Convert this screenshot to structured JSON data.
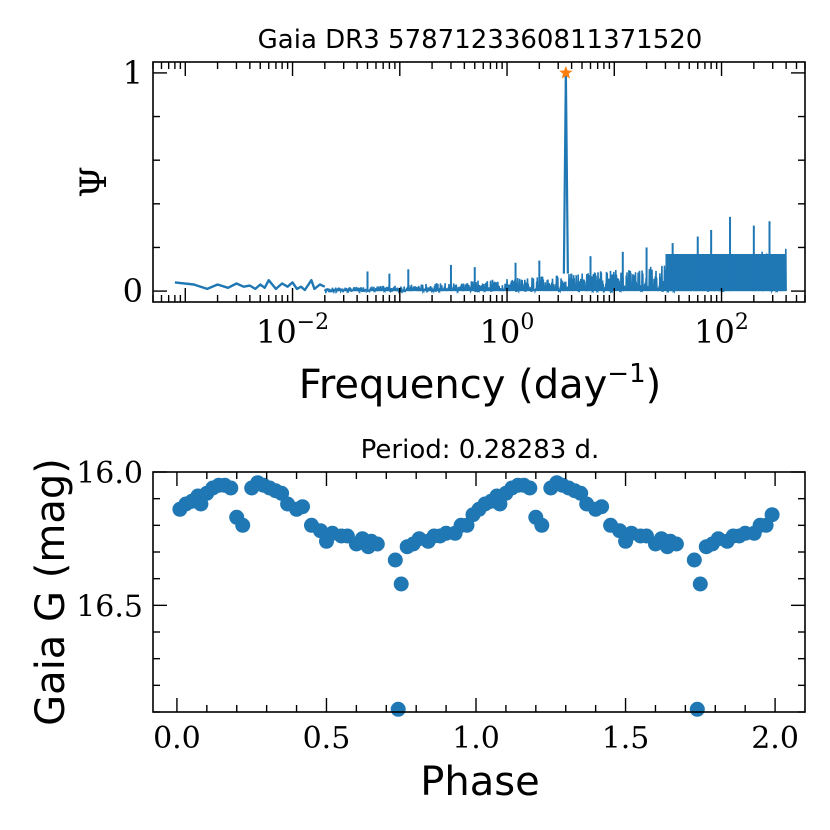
{
  "chart_data": [
    {
      "type": "line",
      "title": "Gaia DR3 5787123360811371520",
      "xlabel": "Frequency (day",
      "xlabel_exp": "−1",
      "xlabel_close": ")",
      "ylabel": "Ψ",
      "xscale": "log",
      "xlim": [
        0.0005,
        600
      ],
      "ylim": [
        -0.05,
        1.05
      ],
      "x_ticks": [
        {
          "value": 0.01,
          "base": "10",
          "exp": "−2"
        },
        {
          "value": 1,
          "base": "10",
          "exp": "0"
        },
        {
          "value": 100,
          "base": "10",
          "exp": "2"
        }
      ],
      "y_ticks": [
        {
          "value": 0,
          "label": "0"
        },
        {
          "value": 1,
          "label": "1"
        }
      ],
      "line_color": "#1f77b4",
      "peak": {
        "frequency": 3.536,
        "value": 1.0,
        "color": "#ff7f0e",
        "marker": "star"
      },
      "series": [
        {
          "name": "periodogram",
          "x": [
            0.0008,
            0.0012,
            0.0016,
            0.002,
            0.0025,
            0.003,
            0.0035,
            0.004,
            0.0045,
            0.005,
            0.0055,
            0.006,
            0.007,
            0.008,
            0.009,
            0.01,
            0.011,
            0.012,
            0.013,
            0.015,
            0.016,
            0.018,
            0.02
          ],
          "y": [
            0.04,
            0.03,
            0.01,
            0.03,
            0.015,
            0.035,
            0.02,
            0.025,
            0.01,
            0.03,
            0.015,
            0.05,
            0.01,
            0.035,
            0.02,
            0.04,
            0.01,
            0.02,
            0.005,
            0.05,
            0.01,
            0.03,
            0.02
          ]
        },
        {
          "name": "noise-band",
          "fmin": 0.02,
          "fmax": 400,
          "ymin": 0.0,
          "ymax_start": 0.05,
          "ymax_end": 0.2
        },
        {
          "name": "spikes",
          "x": [
            0.05,
            0.08,
            0.12,
            0.3,
            0.5,
            1.2,
            2.0,
            6.0,
            12,
            20,
            35,
            60,
            80,
            120,
            200,
            280
          ],
          "y": [
            0.09,
            0.08,
            0.1,
            0.12,
            0.11,
            0.13,
            0.14,
            0.16,
            0.18,
            0.2,
            0.22,
            0.25,
            0.28,
            0.34,
            0.3,
            0.32
          ]
        }
      ]
    },
    {
      "type": "scatter",
      "title": "Period:  0.28283 d.",
      "xlabel": "Phase",
      "ylabel": "Gaia G (mag)",
      "xlim": [
        -0.08,
        2.1
      ],
      "ylim": [
        16.9,
        16.0
      ],
      "x_ticks": [
        {
          "value": 0.0,
          "label": "0.0"
        },
        {
          "value": 0.5,
          "label": "0.5"
        },
        {
          "value": 1.0,
          "label": "1.0"
        },
        {
          "value": 1.5,
          "label": "1.5"
        },
        {
          "value": 2.0,
          "label": "2.0"
        }
      ],
      "y_ticks": [
        {
          "value": 16.0,
          "label": "16.0"
        },
        {
          "value": 16.5,
          "label": "16.5"
        }
      ],
      "marker_color": "#1f77b4",
      "phase": [
        0.01,
        0.03,
        0.05,
        0.07,
        0.08,
        0.1,
        0.12,
        0.14,
        0.16,
        0.18,
        0.2,
        0.22,
        0.25,
        0.27,
        0.29,
        0.31,
        0.33,
        0.35,
        0.37,
        0.4,
        0.42,
        0.45,
        0.48,
        0.5,
        0.52,
        0.55,
        0.57,
        0.6,
        0.62,
        0.64,
        0.65,
        0.67,
        0.73,
        0.74,
        0.75,
        0.77,
        0.79,
        0.81,
        0.84,
        0.86,
        0.88,
        0.9,
        0.93,
        0.95,
        0.97,
        0.99
      ],
      "mag": [
        16.14,
        16.12,
        16.11,
        16.09,
        16.12,
        16.08,
        16.06,
        16.05,
        16.05,
        16.06,
        16.17,
        16.2,
        16.06,
        16.04,
        16.05,
        16.06,
        16.07,
        16.08,
        16.12,
        16.14,
        16.13,
        16.2,
        16.22,
        16.26,
        16.23,
        16.24,
        16.24,
        16.27,
        16.25,
        16.28,
        16.26,
        16.27,
        16.33,
        16.89,
        16.42,
        16.28,
        16.27,
        16.25,
        16.26,
        16.24,
        16.24,
        16.23,
        16.23,
        16.2,
        16.2,
        16.16
      ]
    }
  ]
}
